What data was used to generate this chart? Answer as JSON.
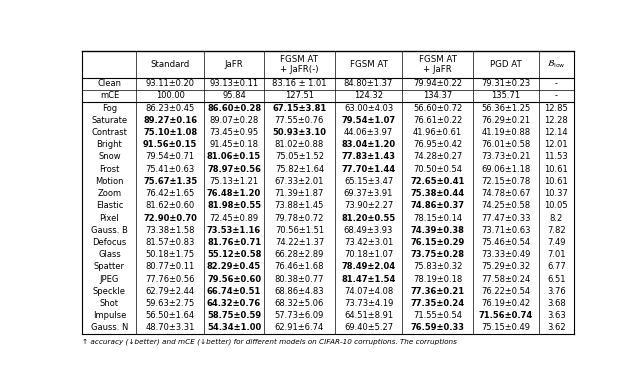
{
  "col_headers": [
    "",
    "Standard",
    "JaFR",
    "FGSM AT\n+ JaFR(-)",
    "FGSM AT",
    "FGSM AT\n+ JaFR",
    "PGD AT",
    "$\\mathcal{B}_{\\rm low}$"
  ],
  "special_rows": [
    {
      "label": "Clean",
      "values": [
        "93.11±0.20",
        "93.13±0.11",
        "83.16 ± 1.01",
        "84.80±1.37",
        "79.94±0.22",
        "79.31±0.23",
        "-"
      ],
      "bold": []
    },
    {
      "label": "mCE",
      "values": [
        "100.00",
        "95.84",
        "127.51",
        "124.32",
        "134.37",
        "135.71",
        "-"
      ],
      "bold": []
    }
  ],
  "rows": [
    {
      "label": "Fog",
      "values": [
        "86.23±0.45",
        "86.60±0.28",
        "67.15±3.81",
        "63.00±4.03",
        "56.60±0.72",
        "56.36±1.25",
        "12.85"
      ],
      "bold": [
        1,
        2
      ]
    },
    {
      "label": "Saturate",
      "values": [
        "89.27±0.16",
        "89.07±0.28",
        "77.55±0.76",
        "79.54±1.07",
        "76.61±0.22",
        "76.29±0.21",
        "12.28"
      ],
      "bold": [
        0,
        3
      ]
    },
    {
      "label": "Contrast",
      "values": [
        "75.10±1.08",
        "73.45±0.95",
        "50.93±3.10",
        "44.06±3.97",
        "41.96±0.61",
        "41.19±0.88",
        "12.14"
      ],
      "bold": [
        0,
        2
      ]
    },
    {
      "label": "Bright",
      "values": [
        "91.56±0.15",
        "91.45±0.18",
        "81.02±0.88",
        "83.04±1.20",
        "76.95±0.42",
        "76.01±0.58",
        "12.01"
      ],
      "bold": [
        0,
        3
      ]
    },
    {
      "label": "Snow",
      "values": [
        "79.54±0.71",
        "81.06±0.15",
        "75.05±1.52",
        "77.83±1.43",
        "74.28±0.27",
        "73.73±0.21",
        "11.53"
      ],
      "bold": [
        1,
        3
      ]
    },
    {
      "label": "Frost",
      "values": [
        "75.41±0.63",
        "78.97±0.56",
        "75.82±1.64",
        "77.70±1.44",
        "70.50±0.54",
        "69.06±1.18",
        "10.61"
      ],
      "bold": [
        1,
        3
      ]
    },
    {
      "label": "Motion",
      "values": [
        "75.67±1.35",
        "75.13±1.21",
        "67.33±2.01",
        "65.15±3.47",
        "72.65±0.41",
        "72.15±0.78",
        "10.61"
      ],
      "bold": [
        0,
        4
      ]
    },
    {
      "label": "Zoom",
      "values": [
        "76.42±1.65",
        "76.48±1.20",
        "71.39±1.87",
        "69.37±3.91",
        "75.38±0.44",
        "74.78±0.67",
        "10.37"
      ],
      "bold": [
        1,
        4
      ]
    },
    {
      "label": "Elastic",
      "values": [
        "81.62±0.60",
        "81.98±0.55",
        "73.88±1.45",
        "73.90±2.27",
        "74.86±0.37",
        "74.25±0.58",
        "10.05"
      ],
      "bold": [
        1,
        4
      ]
    },
    {
      "label": "Pixel",
      "values": [
        "72.90±0.70",
        "72.45±0.89",
        "79.78±0.72",
        "81.20±0.55",
        "78.15±0.14",
        "77.47±0.33",
        "8.2"
      ],
      "bold": [
        0,
        3
      ]
    },
    {
      "label": "Gauss. B",
      "values": [
        "73.38±1.58",
        "73.53±1.16",
        "70.56±1.51",
        "68.49±3.93",
        "74.39±0.38",
        "73.71±0.63",
        "7.82"
      ],
      "bold": [
        1,
        4
      ]
    },
    {
      "label": "Defocus",
      "values": [
        "81.57±0.83",
        "81.76±0.71",
        "74.22±1.37",
        "73.42±3.01",
        "76.15±0.29",
        "75.46±0.54",
        "7.49"
      ],
      "bold": [
        1,
        4
      ]
    },
    {
      "label": "Glass",
      "values": [
        "50.18±1.75",
        "55.12±0.58",
        "66.28±2.89",
        "70.18±1.07",
        "73.75±0.28",
        "73.33±0.49",
        "7.01"
      ],
      "bold": [
        1,
        4
      ]
    },
    {
      "label": "Spatter",
      "values": [
        "80.77±0.11",
        "82.29±0.45",
        "76.46±1.68",
        "78.49±2.04",
        "75.83±0.32",
        "75.29±0.32",
        "6.77"
      ],
      "bold": [
        1,
        3
      ]
    },
    {
      "label": "JPEG",
      "values": [
        "77.76±0.56",
        "79.56±0.60",
        "80.38±0.77",
        "81.47±1.54",
        "78.19±0.18",
        "77.58±0.24",
        "6.51"
      ],
      "bold": [
        1,
        3
      ]
    },
    {
      "label": "Speckle",
      "values": [
        "62.79±2.44",
        "66.74±0.51",
        "68.86±4.83",
        "74.07±4.08",
        "77.36±0.21",
        "76.22±0.54",
        "3.76"
      ],
      "bold": [
        1,
        4
      ]
    },
    {
      "label": "Shot",
      "values": [
        "59.63±2.75",
        "64.32±0.76",
        "68.32±5.06",
        "73.73±4.19",
        "77.35±0.24",
        "76.19±0.42",
        "3.68"
      ],
      "bold": [
        1,
        4
      ]
    },
    {
      "label": "Impulse",
      "values": [
        "56.50±1.64",
        "58.75±0.59",
        "57.73±6.09",
        "64.51±8.91",
        "71.55±0.54",
        "71.56±0.74",
        "3.63"
      ],
      "bold": [
        1,
        5
      ]
    },
    {
      "label": "Gauss. N",
      "values": [
        "48.70±3.31",
        "54.34±1.00",
        "62.91±6.74",
        "69.40±5.27",
        "76.59±0.33",
        "75.15±0.49",
        "3.62"
      ],
      "bold": [
        1,
        4
      ]
    }
  ],
  "footnote": "↑ accuracy (↓better) and mCE (↓better) for different models on CIFAR-10 corruptions. The corruptions",
  "bg_color": "#ffffff",
  "line_color": "#000000",
  "fontsize": 6.0,
  "header_fontsize": 6.2
}
